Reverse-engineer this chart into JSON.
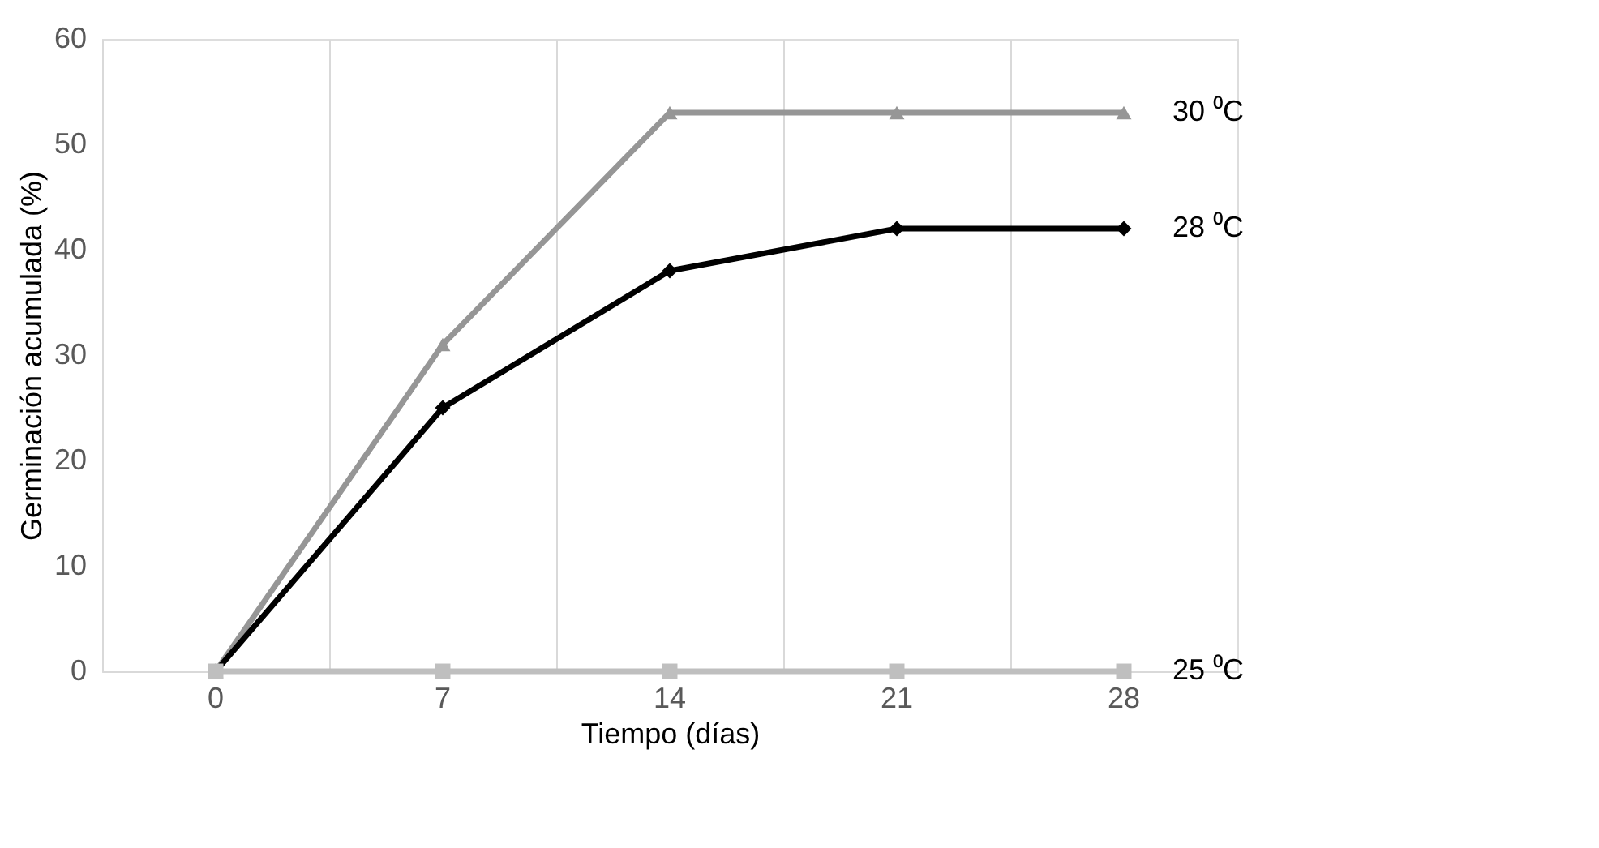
{
  "chart_data": {
    "type": "line",
    "xlabel": "Tiempo (días)",
    "ylabel": "Germinación acumulada (%)",
    "categories": [
      "0",
      "7",
      "14",
      "21",
      "28"
    ],
    "series": [
      {
        "name": "30 ⁰C",
        "color": "#969696",
        "marker": "triangle",
        "values": [
          0,
          31,
          53,
          53,
          53
        ]
      },
      {
        "name": "28 ⁰C",
        "color": "#000000",
        "marker": "diamond",
        "values": [
          0,
          25,
          38,
          42,
          42
        ]
      },
      {
        "name": "25 ⁰C",
        "color": "#bfbfbf",
        "marker": "square",
        "values": [
          0,
          0,
          0,
          0,
          0
        ]
      }
    ],
    "ylim": [
      0,
      60
    ],
    "yticks": [
      0,
      10,
      20,
      30,
      40,
      50,
      60
    ],
    "grid": "x",
    "legend": false,
    "line_style": "solid"
  }
}
